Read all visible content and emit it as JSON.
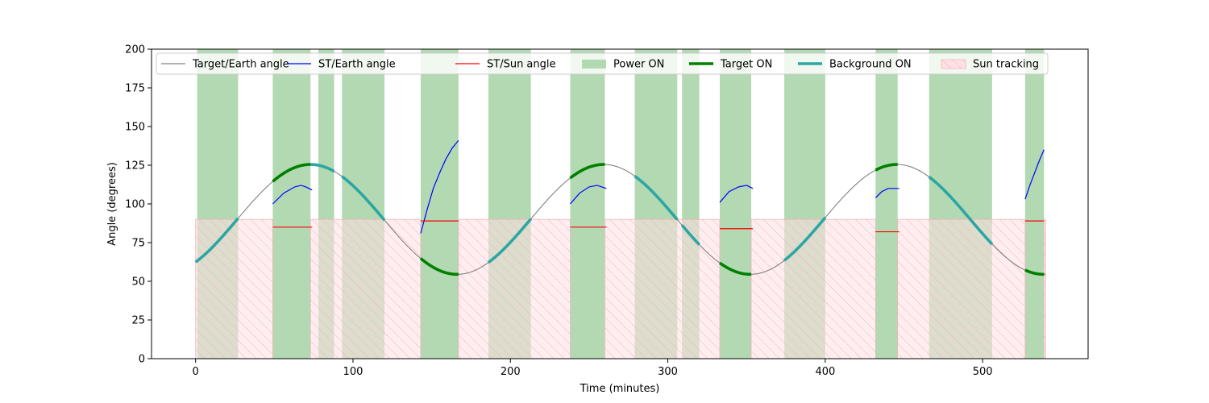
{
  "chart_data": {
    "type": "line",
    "xlabel": "Time (minutes)",
    "ylabel": "Angle (degrees)",
    "xlim": [
      -28,
      567
    ],
    "ylim": [
      0,
      200
    ],
    "xticks": [
      0,
      100,
      200,
      300,
      400,
      500
    ],
    "yticks": [
      0,
      25,
      50,
      75,
      100,
      125,
      150,
      175,
      200
    ],
    "grid": false,
    "legend_position": "top",
    "colors": {
      "target_earth": "#808080",
      "st_earth": "#0000ff",
      "st_sun": "#ff0000",
      "power_on": "#b2d9b2",
      "target_on": "#008000",
      "background_on": "#2ca6a4",
      "sun_tracking_fill": "#ffe0e4",
      "sun_tracking_hatch": "#f4b2b8"
    },
    "legend": [
      {
        "key": "target_earth",
        "label": "Target/Earth angle",
        "style": "line-thin"
      },
      {
        "key": "st_earth",
        "label": "ST/Earth angle",
        "style": "line-thin"
      },
      {
        "key": "st_sun",
        "label": "ST/Sun angle",
        "style": "line-thin"
      },
      {
        "key": "power_on",
        "label": "Power ON",
        "style": "patch"
      },
      {
        "key": "target_on",
        "label": "Target ON",
        "style": "line-thick"
      },
      {
        "key": "background_on",
        "label": "Background ON",
        "style": "line-thick"
      },
      {
        "key": "sun_tracking",
        "label": "Sun tracking",
        "style": "hatch"
      }
    ],
    "target_earth_model": {
      "center": 90,
      "amplitude": 35.5,
      "period": 186.3,
      "peak_time": 73,
      "t_start": 0,
      "t_end": 540
    },
    "power_on_intervals": [
      [
        1,
        27
      ],
      [
        49,
        73
      ],
      [
        78,
        88
      ],
      [
        93,
        120
      ],
      [
        143,
        167
      ],
      [
        186,
        213
      ],
      [
        238,
        260
      ],
      [
        279,
        306
      ],
      [
        309,
        320
      ],
      [
        333,
        353
      ],
      [
        374,
        400
      ],
      [
        432,
        446
      ],
      [
        466,
        506
      ],
      [
        527,
        539
      ]
    ],
    "target_on_intervals": [
      [
        49,
        73
      ],
      [
        143,
        167
      ],
      [
        238,
        260
      ],
      [
        333,
        353
      ],
      [
        432,
        446
      ],
      [
        527,
        539
      ]
    ],
    "background_on_intervals": [
      [
        0,
        27
      ],
      [
        73,
        88
      ],
      [
        93,
        120
      ],
      [
        186,
        213
      ],
      [
        279,
        306
      ],
      [
        309,
        320
      ],
      [
        374,
        400
      ],
      [
        466,
        506
      ]
    ],
    "sun_tracking_intervals": [
      [
        0,
        49
      ],
      [
        73,
        143
      ],
      [
        167,
        238
      ],
      [
        260,
        333
      ],
      [
        353,
        432
      ],
      [
        446,
        527
      ],
      [
        539,
        540
      ]
    ],
    "sun_tracking_level": 90,
    "st_sun_segments": [
      {
        "x": [
          49,
          74
        ],
        "y": [
          85,
          85
        ]
      },
      {
        "x": [
          143,
          167
        ],
        "y": [
          89,
          89
        ]
      },
      {
        "x": [
          238,
          261
        ],
        "y": [
          85,
          85
        ]
      },
      {
        "x": [
          333,
          354
        ],
        "y": [
          84,
          84
        ]
      },
      {
        "x": [
          432,
          447
        ],
        "y": [
          82,
          82
        ]
      },
      {
        "x": [
          527,
          539
        ],
        "y": [
          89,
          89
        ]
      }
    ],
    "st_earth_segments": [
      {
        "x": [
          49,
          56,
          63,
          67,
          70,
          74
        ],
        "y": [
          100,
          107,
          111,
          112,
          111,
          109
        ]
      },
      {
        "x": [
          143,
          147,
          151,
          155,
          159,
          163,
          167
        ],
        "y": [
          81,
          96,
          110,
          120,
          129,
          136,
          141
        ]
      },
      {
        "x": [
          238,
          244,
          250,
          255,
          261
        ],
        "y": [
          100,
          107,
          111,
          112,
          110
        ]
      },
      {
        "x": [
          333,
          339,
          345,
          350,
          354
        ],
        "y": [
          101,
          108,
          111,
          112,
          110
        ]
      },
      {
        "x": [
          432,
          436,
          440,
          444,
          447
        ],
        "y": [
          104,
          108,
          110,
          110,
          110
        ]
      },
      {
        "x": [
          527,
          530,
          533,
          536,
          539
        ],
        "y": [
          103,
          112,
          120,
          128,
          135
        ]
      }
    ]
  }
}
